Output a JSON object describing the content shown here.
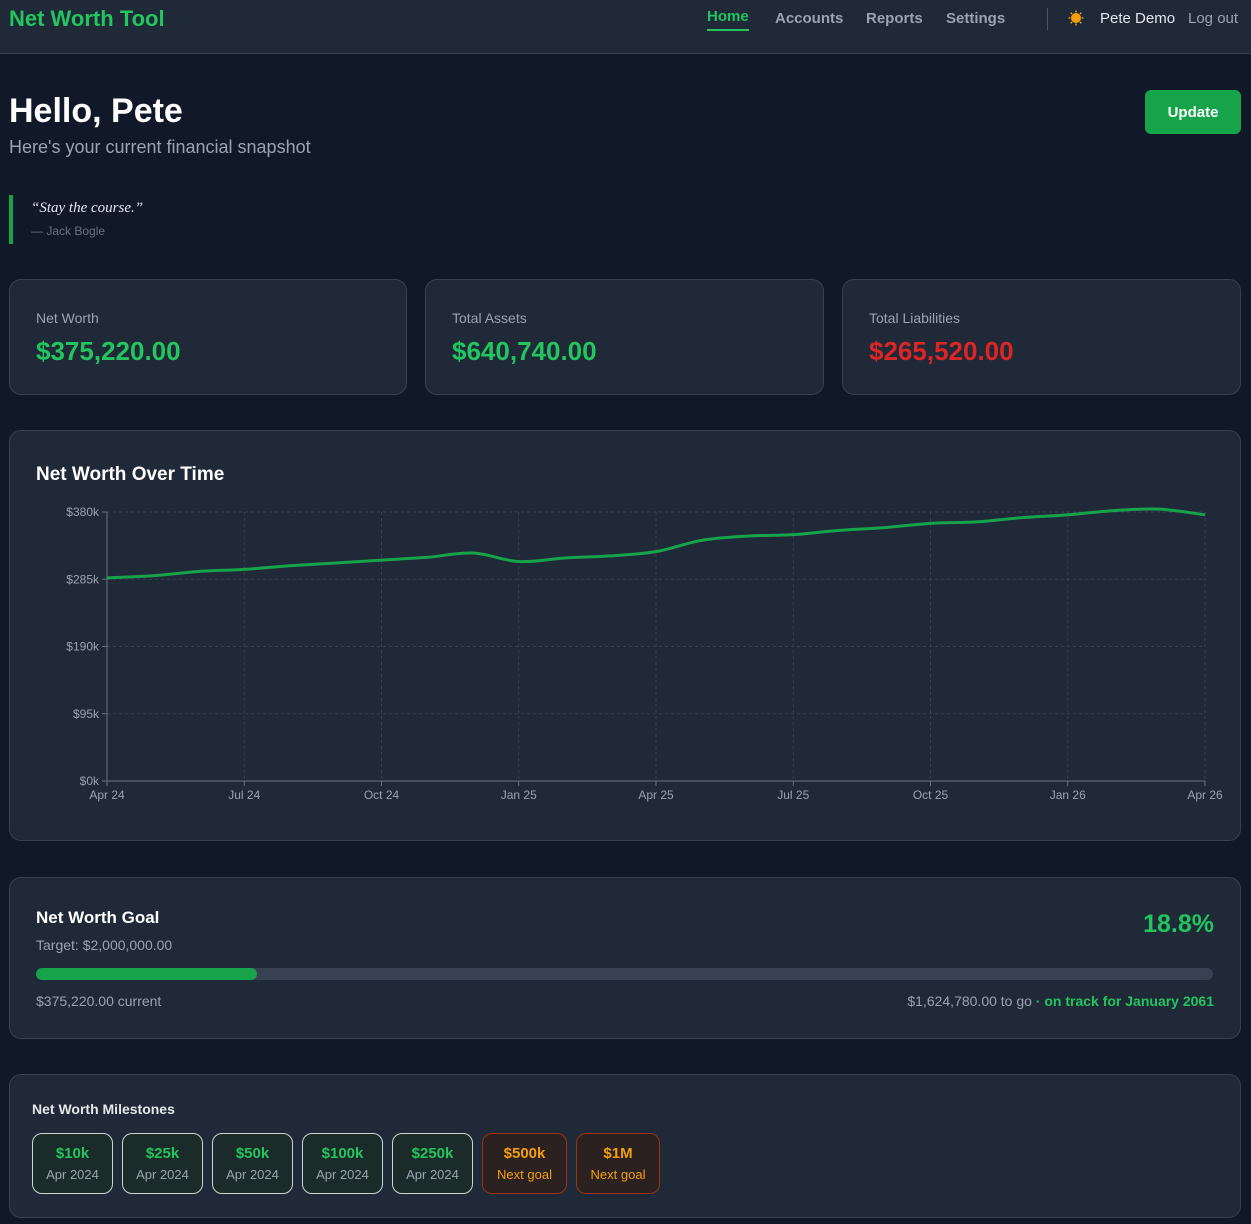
{
  "app": {
    "title": "Net Worth Tool"
  },
  "nav": {
    "items": [
      {
        "label": "Home",
        "active": true
      },
      {
        "label": "Accounts",
        "active": false
      },
      {
        "label": "Reports",
        "active": false
      },
      {
        "label": "Settings",
        "active": false
      }
    ],
    "theme_icon": "sun-icon",
    "user": "Pete Demo",
    "logout": "Log out"
  },
  "header": {
    "greeting": "Hello, Pete",
    "subtitle": "Here's your current financial snapshot",
    "update_label": "Update"
  },
  "quote": {
    "text": "“Stay the course.”",
    "author": "— Jack Bogle"
  },
  "stats": [
    {
      "label": "Net Worth",
      "value": "$375,220.00",
      "tone": "positive"
    },
    {
      "label": "Total Assets",
      "value": "$640,740.00",
      "tone": "positive"
    },
    {
      "label": "Total Liabilities",
      "value": "$265,520.00",
      "tone": "negative"
    }
  ],
  "chart_data": {
    "type": "line",
    "title": "Net Worth Over Time",
    "xlabel": "",
    "ylabel": "",
    "x_ticks": [
      "Apr 24",
      "Jul 24",
      "Oct 24",
      "Jan 25",
      "Apr 25",
      "Jul 25",
      "Oct 25",
      "Jan 26",
      "Apr 26"
    ],
    "y_ticks": [
      "$0k",
      "$95k",
      "$190k",
      "$285k",
      "$380k"
    ],
    "ylim": [
      0,
      380000
    ],
    "grid": true,
    "line_color": "#16a34a",
    "series": [
      {
        "x": [
          "2024-04",
          "2024-05",
          "2024-06",
          "2024-07",
          "2024-08",
          "2024-09",
          "2024-10",
          "2024-11",
          "2024-12",
          "2025-01",
          "2025-02",
          "2025-03",
          "2025-04",
          "2025-05",
          "2025-06",
          "2025-07",
          "2025-08",
          "2025-09",
          "2025-10",
          "2025-11",
          "2025-12",
          "2026-01",
          "2026-02",
          "2026-03",
          "2026-04"
        ],
        "values": [
          287000,
          290000,
          296000,
          299000,
          304000,
          308000,
          312000,
          316000,
          322000,
          310000,
          315000,
          318000,
          324000,
          340000,
          346000,
          348000,
          354000,
          358000,
          364000,
          366000,
          372000,
          376000,
          382000,
          384000,
          376000
        ]
      }
    ]
  },
  "goal": {
    "title": "Net Worth Goal",
    "target": "Target: $2,000,000.00",
    "percent_label": "18.8%",
    "progress": 0.188,
    "current": "$375,220.00 current",
    "remaining": "$1,624,780.00 to go",
    "on_track": " · on track for January 2061"
  },
  "milestones": {
    "title": "Net Worth Milestones",
    "items": [
      {
        "amount": "$10k",
        "sub": "Apr 2024",
        "reached": true
      },
      {
        "amount": "$25k",
        "sub": "Apr 2024",
        "reached": true
      },
      {
        "amount": "$50k",
        "sub": "Apr 2024",
        "reached": true
      },
      {
        "amount": "$100k",
        "sub": "Apr 2024",
        "reached": true
      },
      {
        "amount": "$250k",
        "sub": "Apr 2024",
        "reached": true
      },
      {
        "amount": "$500k",
        "sub": "Next goal",
        "reached": false
      },
      {
        "amount": "$1M",
        "sub": "Next goal",
        "reached": false
      }
    ]
  }
}
